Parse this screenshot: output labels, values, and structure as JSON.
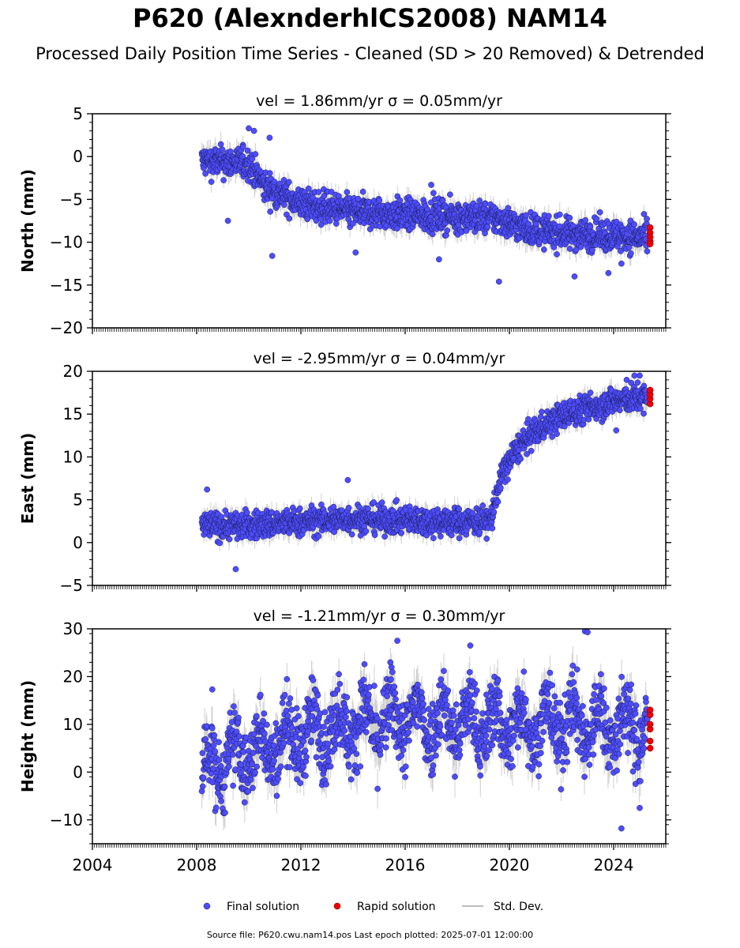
{
  "title": "P620 (AlexnderhlCS2008) NAM14",
  "subtitle": "Processed Daily Position Time Series - Cleaned (SD > 20 Removed) & Detrended",
  "source_note": "Source file: P620.cwu.nam14.pos  Last epoch plotted: 2025-07-01 12:00:00",
  "colors": {
    "final": "#4d4dff",
    "rapid": "#ee0000",
    "stddev": "#bbbbbb",
    "frame": "#000000"
  },
  "legend": {
    "final": "Final solution",
    "rapid": "Rapid solution",
    "stddev": "Std. Dev."
  },
  "chart_data": [
    {
      "type": "scatter",
      "panel": "north",
      "title": "vel = 1.86mm/yr   σ = 0.05mm/yr",
      "ylabel": "North (mm)",
      "xlabel": "",
      "xlim": [
        2004.0,
        2026.0
      ],
      "ylim": [
        -20,
        5
      ],
      "yticks": [
        5,
        0,
        -5,
        -10,
        -15,
        -20
      ],
      "ytick_labels": [
        "5",
        "0",
        "−5",
        "−10",
        "−15",
        "−20"
      ],
      "trend": [
        [
          2008.2,
          -0.5
        ],
        [
          2010.0,
          -0.8
        ],
        [
          2010.6,
          -3.5
        ],
        [
          2012.0,
          -5.5
        ],
        [
          2014.0,
          -6.5
        ],
        [
          2016.0,
          -6.8
        ],
        [
          2018.0,
          -7.0
        ],
        [
          2019.5,
          -7.2
        ],
        [
          2020.5,
          -8.3
        ],
        [
          2022.0,
          -9.0
        ],
        [
          2024.0,
          -9.2
        ],
        [
          2025.3,
          -9.5
        ]
      ],
      "final_points": [
        [
          2009.2,
          -7.5
        ],
        [
          2010.0,
          3.3
        ],
        [
          2010.2,
          3.0
        ],
        [
          2010.8,
          2.2
        ],
        [
          2010.9,
          -11.6
        ],
        [
          2014.1,
          -11.2
        ],
        [
          2017.0,
          -3.3
        ],
        [
          2017.3,
          -12.0
        ],
        [
          2019.6,
          -14.6
        ],
        [
          2022.5,
          -14.0
        ],
        [
          2023.8,
          -13.6
        ],
        [
          2024.3,
          -12.5
        ]
      ],
      "rapid_points": [
        [
          2025.4,
          -8.3
        ],
        [
          2025.4,
          -8.9
        ],
        [
          2025.4,
          -9.4
        ],
        [
          2025.4,
          -9.9
        ],
        [
          2025.4,
          -10.2
        ]
      ]
    },
    {
      "type": "scatter",
      "panel": "east",
      "title": "vel = -2.95mm/yr   σ = 0.04mm/yr",
      "ylabel": "East (mm)",
      "xlabel": "",
      "xlim": [
        2004.0,
        2026.0
      ],
      "ylim": [
        -5,
        20
      ],
      "yticks": [
        20,
        15,
        10,
        5,
        0,
        -5
      ],
      "ytick_labels": [
        "20",
        "15",
        "10",
        "5",
        "0",
        "−5"
      ],
      "trend": [
        [
          2008.2,
          2.0
        ],
        [
          2010.0,
          2.0
        ],
        [
          2012.0,
          2.4
        ],
        [
          2014.0,
          2.8
        ],
        [
          2016.0,
          2.6
        ],
        [
          2018.0,
          2.4
        ],
        [
          2019.3,
          2.6
        ],
        [
          2019.5,
          5.5
        ],
        [
          2019.8,
          8.5
        ],
        [
          2020.3,
          11.0
        ],
        [
          2021.0,
          13.0
        ],
        [
          2022.0,
          14.8
        ],
        [
          2023.0,
          15.7
        ],
        [
          2024.0,
          16.5
        ],
        [
          2025.3,
          17.0
        ]
      ],
      "final_points": [
        [
          2008.4,
          6.2
        ],
        [
          2009.5,
          -3.1
        ],
        [
          2013.8,
          7.3
        ],
        [
          2024.8,
          19.5
        ],
        [
          2025.0,
          19.5
        ],
        [
          2024.5,
          19.0
        ],
        [
          2024.1,
          13.1
        ]
      ],
      "rapid_points": [
        [
          2025.4,
          16.2
        ],
        [
          2025.4,
          16.8
        ],
        [
          2025.4,
          17.3
        ],
        [
          2025.4,
          17.8
        ]
      ]
    },
    {
      "type": "scatter",
      "panel": "height",
      "title": "vel = -1.21mm/yr   σ = 0.30mm/yr",
      "ylabel": "Height (mm)",
      "xlabel": "",
      "xlim": [
        2004.0,
        2026.0
      ],
      "ylim": [
        -15,
        30
      ],
      "yticks": [
        30,
        20,
        10,
        0,
        -10
      ],
      "ytick_labels": [
        "30",
        "20",
        "10",
        "0",
        "−10"
      ],
      "xticks": [
        2004,
        2008,
        2012,
        2016,
        2020,
        2024
      ],
      "xtick_labels": [
        "2004",
        "2008",
        "2012",
        "2016",
        "2020",
        "2024"
      ],
      "trend": [
        [
          2008.2,
          0.0
        ],
        [
          2009.0,
          2.0
        ],
        [
          2010.0,
          4.0
        ],
        [
          2011.0,
          6.0
        ],
        [
          2012.0,
          8.0
        ],
        [
          2014.0,
          10.0
        ],
        [
          2016.0,
          11.0
        ],
        [
          2018.0,
          10.5
        ],
        [
          2020.0,
          10.0
        ],
        [
          2022.0,
          10.5
        ],
        [
          2024.0,
          9.5
        ],
        [
          2025.3,
          9.0
        ]
      ],
      "final_points": [
        [
          2008.6,
          17.3
        ],
        [
          2022.9,
          29.5
        ],
        [
          2023.0,
          29.3
        ],
        [
          2024.3,
          -11.8
        ],
        [
          2025.0,
          -7.5
        ],
        [
          2018.5,
          26.5
        ],
        [
          2015.7,
          27.5
        ]
      ],
      "rapid_points": [
        [
          2025.4,
          5.0
        ],
        [
          2025.4,
          6.5
        ],
        [
          2025.4,
          9.0
        ],
        [
          2025.4,
          10.0
        ],
        [
          2025.4,
          12.0
        ],
        [
          2025.4,
          13.0
        ]
      ]
    }
  ]
}
